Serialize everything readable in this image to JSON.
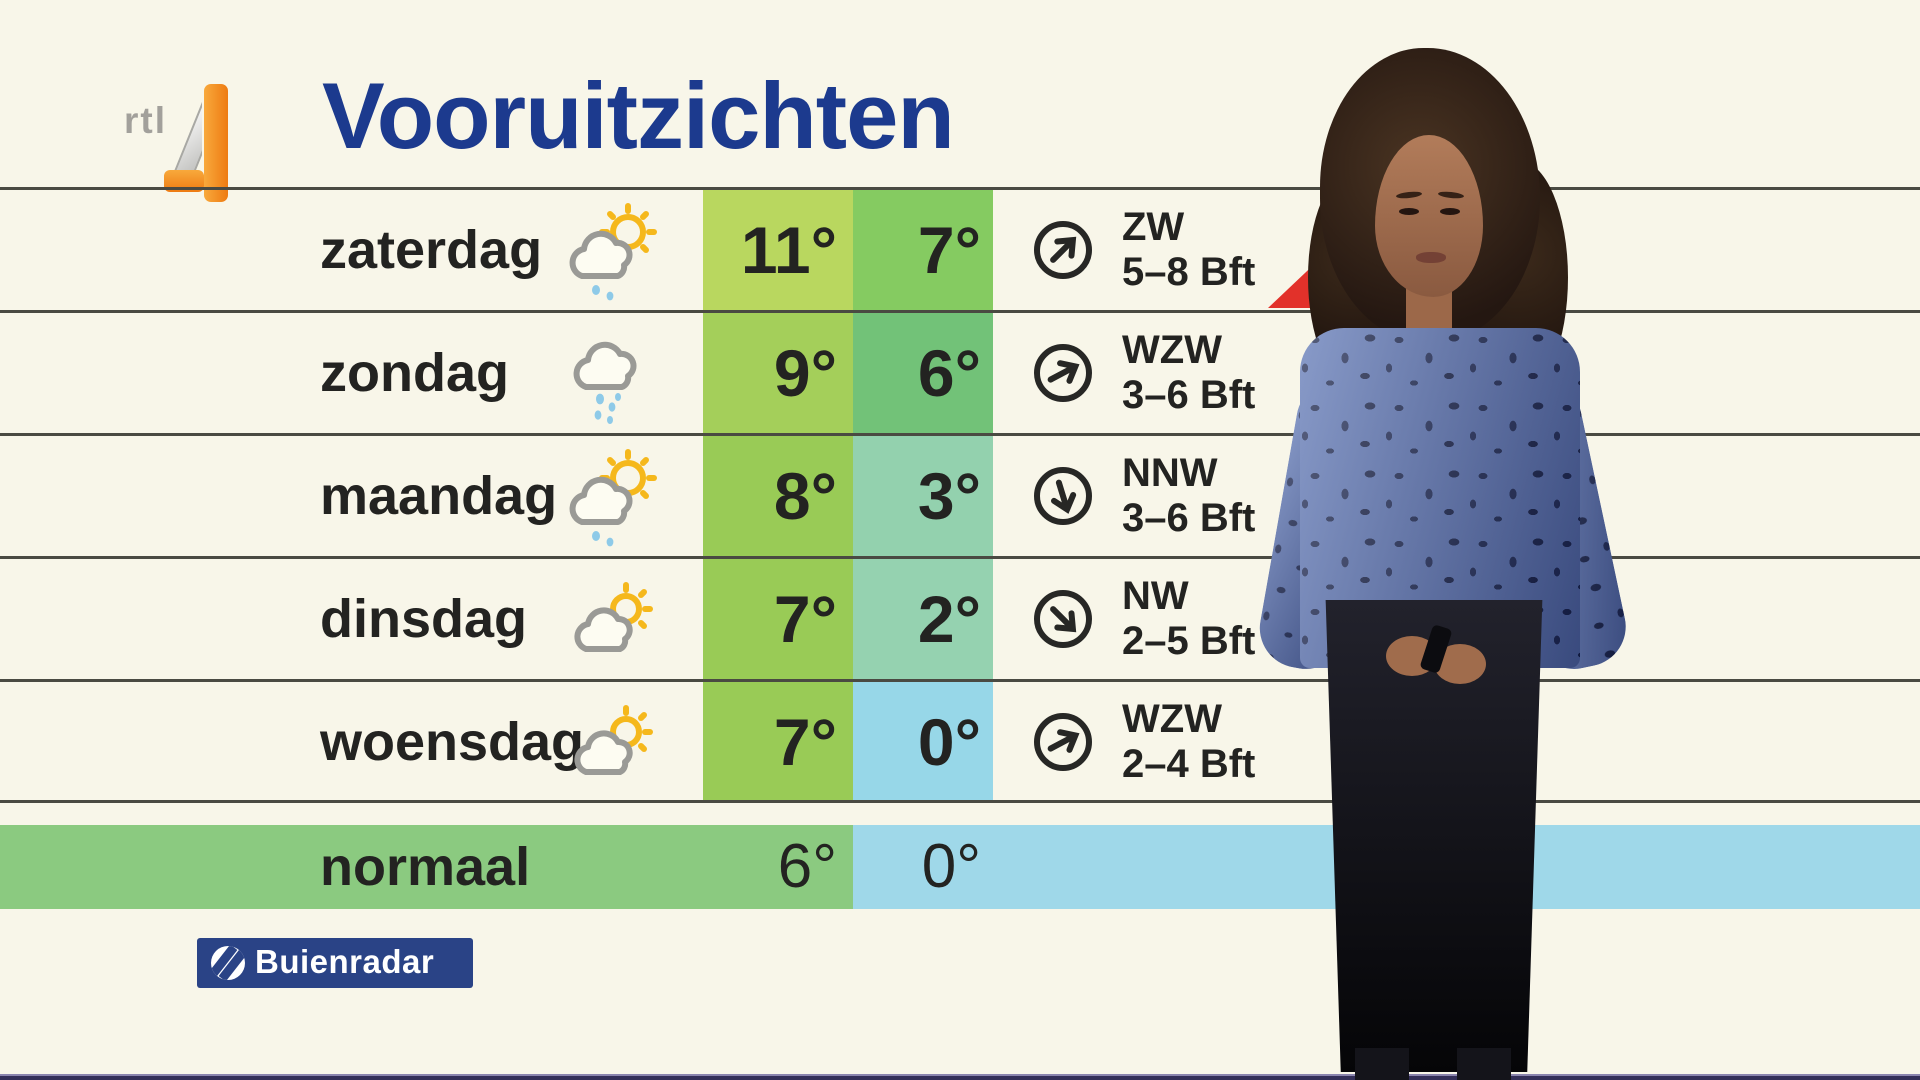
{
  "header": {
    "title": "Vooruitzichten",
    "rtl_logo_text": "rtl",
    "rtl_logo_number": "4"
  },
  "colors": {
    "background": "#f8f6e9",
    "title_blue": "#1c3a8e",
    "line": "#4a4a42",
    "rtl_orange": "#ee7b12",
    "buienradar_blue": "#2a4386",
    "warning_red": "#e2312a",
    "normal_green": "#8bca80",
    "normal_blue": "#9fd8e9"
  },
  "table": {
    "rows": [
      {
        "day": "zaterdag",
        "icon": "sun-cloud-drizzle",
        "max": "11°",
        "min": "7°",
        "max_bg": "#b9d75f",
        "min_bg": "#85cb61",
        "wind_dir": "ZW",
        "wind_force": "5–8 Bft",
        "arrow_deg": 45
      },
      {
        "day": "zondag",
        "icon": "rain-cloud",
        "max": "9°",
        "min": "6°",
        "max_bg": "#a4cf5a",
        "min_bg": "#72c278",
        "wind_dir": "WZW",
        "wind_force": "3–6 Bft",
        "arrow_deg": 62
      },
      {
        "day": "maandag",
        "icon": "sun-cloud-drizzle",
        "max": "8°",
        "min": "3°",
        "max_bg": "#99cb56",
        "min_bg": "#93d1ae",
        "wind_dir": "NNW",
        "wind_force": "3–6 Bft",
        "arrow_deg": 163
      },
      {
        "day": "dinsdag",
        "icon": "cloud-sun",
        "max": "7°",
        "min": "2°",
        "max_bg": "#99cb56",
        "min_bg": "#95d2b0",
        "wind_dir": "NW",
        "wind_force": "2–5 Bft",
        "arrow_deg": 135
      },
      {
        "day": "woensdag",
        "icon": "cloud-sun",
        "max": "7°",
        "min": "0°",
        "max_bg": "#99cb56",
        "min_bg": "#97d7e8",
        "wind_dir": "WZW",
        "wind_force": "2–4 Bft",
        "arrow_deg": 62
      }
    ],
    "normal": {
      "label": "normaal",
      "max": "6°",
      "min": "0°"
    }
  },
  "footer": {
    "buienradar_label": "Buienradar"
  }
}
